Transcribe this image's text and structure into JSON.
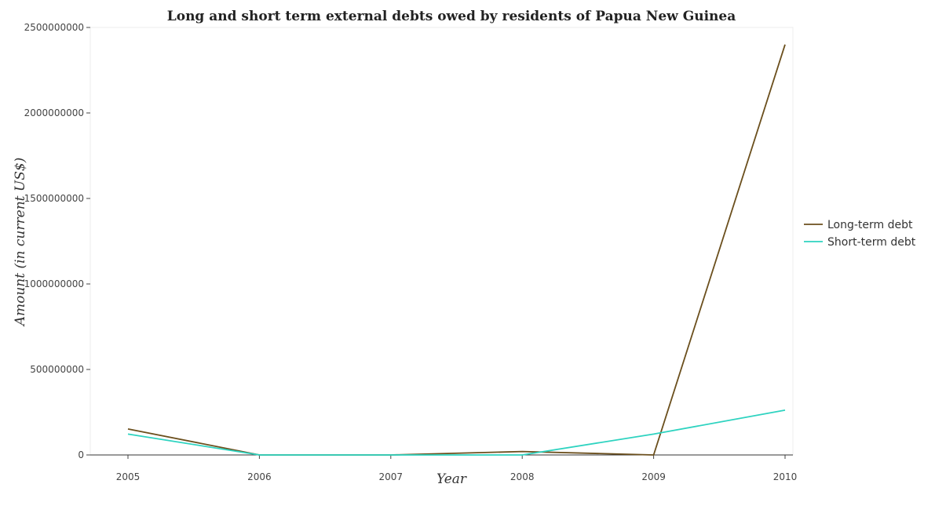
{
  "chart_data": {
    "type": "line",
    "title": "Long and short term external debts owed by residents of Papua New Guinea",
    "xlabel": "Year",
    "ylabel": "Amount (in current US$)",
    "categories": [
      "2005",
      "2006",
      "2007",
      "2008",
      "2009",
      "2010"
    ],
    "ylim": [
      0,
      2500000000
    ],
    "yticks": [
      0,
      500000000,
      1000000000,
      1500000000,
      2000000000,
      2500000000
    ],
    "ytick_labels": [
      "0",
      "500000000",
      "1000000000",
      "1500000000",
      "2000000000",
      "2500000000"
    ],
    "grid": false,
    "legend_position": "right",
    "series": [
      {
        "name": "Long-term debt",
        "color": "#6b4f1d",
        "values": [
          152000000,
          0,
          0,
          20000000,
          0,
          2400000000
        ]
      },
      {
        "name": "Short-term debt",
        "color": "#2ed3c0",
        "values": [
          122000000,
          0,
          0,
          0,
          122000000,
          262000000
        ]
      }
    ]
  }
}
